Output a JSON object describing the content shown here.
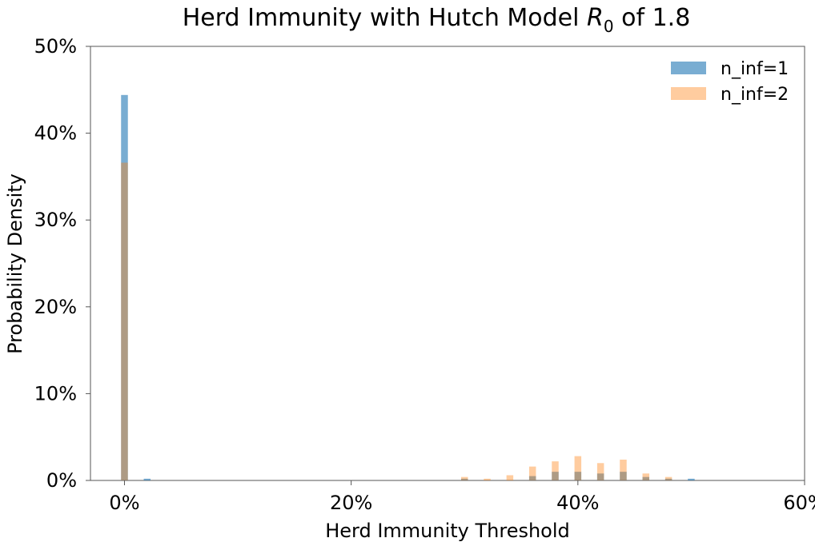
{
  "chart_data": {
    "type": "bar",
    "title_prefix": "Herd Immunity with Hutch Model ",
    "title_symbol": "R",
    "title_subscript": "0",
    "title_suffix": " of 1.8",
    "xlabel": "Herd Immunity Threshold",
    "ylabel": "Probability Density",
    "xlim": [
      -0.03,
      0.6
    ],
    "ylim": [
      0,
      0.5
    ],
    "x_ticks": [
      0,
      0.2,
      0.4,
      0.6
    ],
    "x_tick_labels": [
      "0%",
      "20%",
      "40%",
      "60%"
    ],
    "y_ticks": [
      0,
      0.1,
      0.2,
      0.3,
      0.4,
      0.5
    ],
    "y_tick_labels": [
      "0%",
      "10%",
      "20%",
      "30%",
      "40%",
      "50%"
    ],
    "bin_width": 0.01,
    "legend_position": "top-right",
    "series": [
      {
        "name": "n_inf=1",
        "color": "#1f77b4",
        "x": [
          0.0,
          0.02,
          0.3,
          0.36,
          0.38,
          0.4,
          0.42,
          0.44,
          0.46,
          0.48,
          0.5
        ],
        "values": [
          0.444,
          0.002,
          0.002,
          0.005,
          0.01,
          0.01,
          0.008,
          0.01,
          0.004,
          0.002,
          0.002
        ]
      },
      {
        "name": "n_inf=2",
        "color": "#ff7f0e",
        "x": [
          0.0,
          0.3,
          0.32,
          0.34,
          0.36,
          0.38,
          0.4,
          0.42,
          0.44,
          0.46,
          0.48
        ],
        "values": [
          0.366,
          0.004,
          0.002,
          0.006,
          0.016,
          0.022,
          0.028,
          0.02,
          0.024,
          0.008,
          0.004
        ]
      }
    ]
  }
}
